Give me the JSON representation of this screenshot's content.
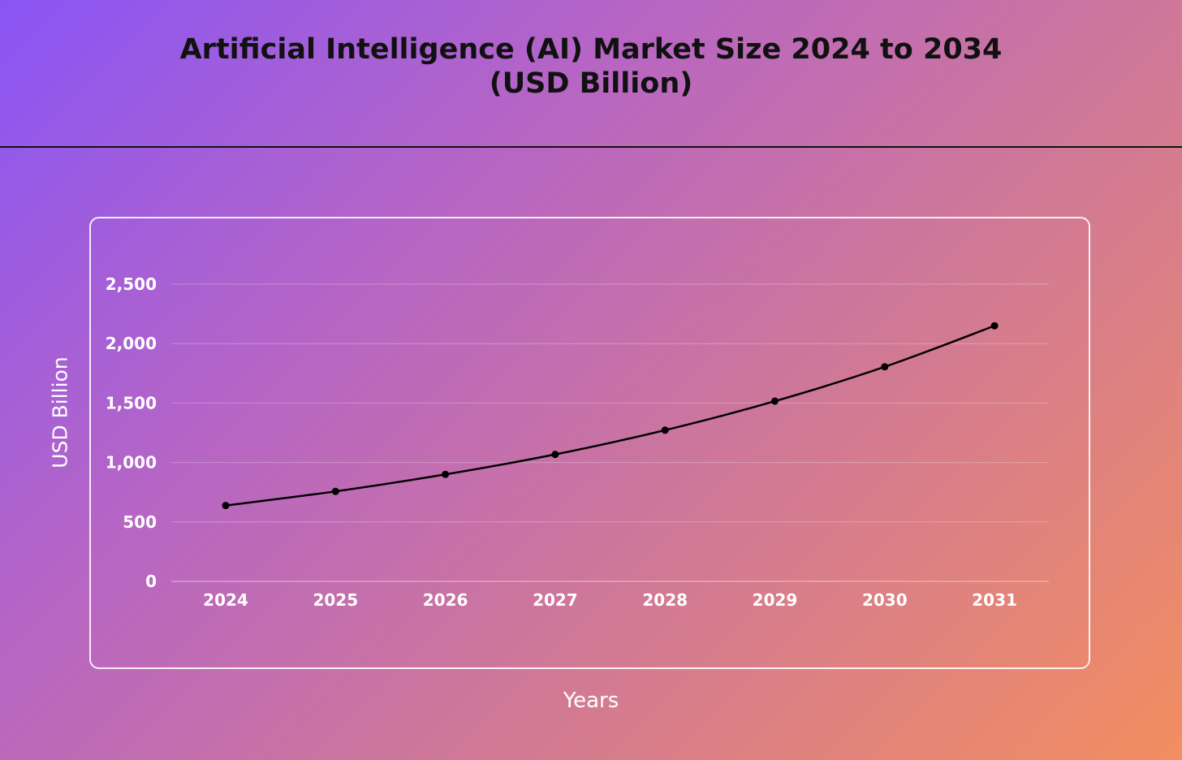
{
  "title": {
    "line1": "Artificial Intelligence (AI) Market Size 2024 to 2034",
    "line2": "(USD Billion)"
  },
  "colors": {
    "background_start": "#8a55f5",
    "background_end": "#f28e60",
    "line": "#000000",
    "text": "#ffffff",
    "title_text": "#111111"
  },
  "chart_data": {
    "type": "line",
    "title": "Artificial Intelligence (AI) Market Size 2024 to 2034 (USD Billion)",
    "xlabel": "Years",
    "ylabel": "USD Billion",
    "categories": [
      "2024",
      "2025",
      "2026",
      "2027",
      "2028",
      "2029",
      "2030",
      "2031"
    ],
    "series": [
      {
        "values": [
          638,
          757,
          900,
          1068,
          1272,
          1516,
          1805,
          2150
        ]
      }
    ],
    "ylim": [
      0,
      2500
    ],
    "yticks": [
      0,
      500,
      1000,
      1500,
      2000,
      2500
    ],
    "ytick_labels": [
      "0",
      "500",
      "1,000",
      "1,500",
      "2,000",
      "2,500"
    ],
    "grid": true,
    "legend": "none"
  }
}
